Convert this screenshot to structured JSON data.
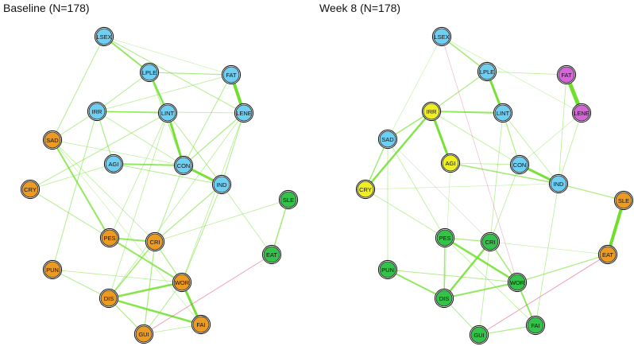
{
  "panels": [
    {
      "title": "Baseline (N=178)",
      "nodes": [
        {
          "id": "LSEX",
          "group": "blue"
        },
        {
          "id": "LPLE",
          "group": "blue"
        },
        {
          "id": "FAT",
          "group": "blue"
        },
        {
          "id": "IRR",
          "group": "blue"
        },
        {
          "id": "LINT",
          "group": "blue"
        },
        {
          "id": "LENE",
          "group": "blue"
        },
        {
          "id": "SAD",
          "group": "orange"
        },
        {
          "id": "AGI",
          "group": "blue"
        },
        {
          "id": "CON",
          "group": "blue"
        },
        {
          "id": "CRY",
          "group": "orange"
        },
        {
          "id": "IND",
          "group": "blue"
        },
        {
          "id": "SLE",
          "group": "green"
        },
        {
          "id": "PES",
          "group": "orange"
        },
        {
          "id": "CRI",
          "group": "orange"
        },
        {
          "id": "EAT",
          "group": "green"
        },
        {
          "id": "PUN",
          "group": "orange"
        },
        {
          "id": "WOR",
          "group": "orange"
        },
        {
          "id": "DIS",
          "group": "orange"
        },
        {
          "id": "FAI",
          "group": "orange"
        },
        {
          "id": "GUI",
          "group": "orange"
        }
      ],
      "edges": [
        {
          "a": "FAT",
          "b": "LENE",
          "w": 4
        },
        {
          "a": "LINT",
          "b": "CON",
          "w": 3
        },
        {
          "a": "CON",
          "b": "IND",
          "w": 3
        },
        {
          "a": "LPLE",
          "b": "LINT",
          "w": 2.5
        },
        {
          "a": "LSEX",
          "b": "LPLE",
          "w": 2
        },
        {
          "a": "AGI",
          "b": "CON",
          "w": 2
        },
        {
          "a": "PES",
          "b": "WOR",
          "w": 2
        },
        {
          "a": "WOR",
          "b": "FAI",
          "w": 3
        },
        {
          "a": "DIS",
          "b": "FAI",
          "w": 2.5
        },
        {
          "a": "PES",
          "b": "CRI",
          "w": 2
        },
        {
          "a": "DIS",
          "b": "WOR",
          "w": 2.5
        },
        {
          "a": "SAD",
          "b": "PES",
          "w": 2
        },
        {
          "a": "CRI",
          "b": "DIS",
          "w": 1.5
        },
        {
          "a": "IRR",
          "b": "LINT",
          "w": 1.5
        },
        {
          "a": "SLE",
          "b": "EAT",
          "w": 1.5
        },
        {
          "a": "LPLE",
          "b": "FAT",
          "w": 1.2
        },
        {
          "a": "LSEX",
          "b": "LENE",
          "w": 1
        },
        {
          "a": "IRR",
          "b": "AGI",
          "w": 1.2
        },
        {
          "a": "IRR",
          "b": "LPLE",
          "w": 1
        },
        {
          "a": "LENE",
          "b": "CON",
          "w": 1.2
        },
        {
          "a": "LENE",
          "b": "IND",
          "w": 1
        },
        {
          "a": "LINT",
          "b": "IND",
          "w": 1
        },
        {
          "a": "CRY",
          "b": "LINT",
          "w": 1
        },
        {
          "a": "SAD",
          "b": "IRR",
          "w": 1
        },
        {
          "a": "SAD",
          "b": "LSEX",
          "w": 1
        },
        {
          "a": "CRY",
          "b": "PES",
          "w": 1
        },
        {
          "a": "PUN",
          "b": "IRR",
          "w": 1
        },
        {
          "a": "DIS",
          "b": "GUI",
          "w": 1.2
        },
        {
          "a": "GUI",
          "b": "CRI",
          "w": 1.2
        },
        {
          "a": "GUI",
          "b": "WOR",
          "w": 1
        },
        {
          "a": "SLE",
          "b": "CRI",
          "w": 0.8
        },
        {
          "a": "IND",
          "b": "CRI",
          "w": 1.2
        },
        {
          "a": "CRI",
          "b": "WOR",
          "w": 1.2
        },
        {
          "a": "PUN",
          "b": "DIS",
          "w": 1
        },
        {
          "a": "CON",
          "b": "CRI",
          "w": 1
        },
        {
          "a": "AGI",
          "b": "IND",
          "w": 1
        },
        {
          "a": "FAT",
          "b": "IRR",
          "w": 0.8
        },
        {
          "a": "FAT",
          "b": "CON",
          "w": 1
        },
        {
          "a": "IRR",
          "b": "LENE",
          "w": 0.8
        },
        {
          "a": "SAD",
          "b": "CRI",
          "w": 0.8
        },
        {
          "a": "LINT",
          "b": "PES",
          "w": 0.8
        },
        {
          "a": "IND",
          "b": "WOR",
          "w": 1
        },
        {
          "a": "IND",
          "b": "EAT",
          "w": 0.8
        },
        {
          "a": "CRY",
          "b": "AGI",
          "w": 0.8
        },
        {
          "a": "LSEX",
          "b": "FAT",
          "w": 0.6
        },
        {
          "a": "SAD",
          "b": "FAI",
          "w": 0.6
        },
        {
          "a": "LINT",
          "b": "DIS",
          "w": 0.8
        },
        {
          "a": "LENE",
          "b": "DIS",
          "w": 0.8
        },
        {
          "a": "LENE",
          "b": "WOR",
          "w": 0.8
        },
        {
          "a": "EAT",
          "b": "GUI",
          "w": 1,
          "neg": true
        },
        {
          "a": "FAI",
          "b": "GUI",
          "w": 0.8
        },
        {
          "a": "PUN",
          "b": "WOR",
          "w": 0.8
        },
        {
          "a": "LPLE",
          "b": "CON",
          "w": 1
        },
        {
          "a": "IRR",
          "b": "CON",
          "w": 0.8
        },
        {
          "a": "SAD",
          "b": "CON",
          "w": 0.7
        }
      ]
    },
    {
      "title": "Week 8 (N=178)",
      "nodes": [
        {
          "id": "LSEX",
          "group": "blue"
        },
        {
          "id": "LPLE",
          "group": "blue"
        },
        {
          "id": "FAT",
          "group": "magenta"
        },
        {
          "id": "IRR",
          "group": "yellow"
        },
        {
          "id": "LINT",
          "group": "blue"
        },
        {
          "id": "LENE",
          "group": "magenta"
        },
        {
          "id": "SAD",
          "group": "blue"
        },
        {
          "id": "AGI",
          "group": "yellow"
        },
        {
          "id": "CON",
          "group": "blue"
        },
        {
          "id": "CRY",
          "group": "yellow"
        },
        {
          "id": "IND",
          "group": "blue"
        },
        {
          "id": "SLE",
          "group": "orange"
        },
        {
          "id": "PES",
          "group": "green"
        },
        {
          "id": "CRI",
          "group": "green"
        },
        {
          "id": "EAT",
          "group": "orange"
        },
        {
          "id": "PUN",
          "group": "green"
        },
        {
          "id": "WOR",
          "group": "green"
        },
        {
          "id": "DIS",
          "group": "green"
        },
        {
          "id": "FAI",
          "group": "green"
        },
        {
          "id": "GUI",
          "group": "green"
        }
      ],
      "edges": [
        {
          "a": "FAT",
          "b": "LENE",
          "w": 5
        },
        {
          "a": "SLE",
          "b": "EAT",
          "w": 4
        },
        {
          "a": "IRR",
          "b": "AGI",
          "w": 3
        },
        {
          "a": "LPLE",
          "b": "LINT",
          "w": 3
        },
        {
          "a": "CON",
          "b": "IND",
          "w": 3
        },
        {
          "a": "IRR",
          "b": "CRY",
          "w": 2.5
        },
        {
          "a": "IRR",
          "b": "LINT",
          "w": 2
        },
        {
          "a": "PES",
          "b": "WOR",
          "w": 2.5
        },
        {
          "a": "CRI",
          "b": "DIS",
          "w": 2.5
        },
        {
          "a": "WOR",
          "b": "FAI",
          "w": 2
        },
        {
          "a": "PUN",
          "b": "DIS",
          "w": 2
        },
        {
          "a": "LSEX",
          "b": "LPLE",
          "w": 1.5
        },
        {
          "a": "SAD",
          "b": "IRR",
          "w": 1.5
        },
        {
          "a": "SAD",
          "b": "CRY",
          "w": 1.5
        },
        {
          "a": "DIS",
          "b": "WOR",
          "w": 2
        },
        {
          "a": "CRI",
          "b": "WOR",
          "w": 1.5
        },
        {
          "a": "PES",
          "b": "DIS",
          "w": 1.5
        },
        {
          "a": "AGI",
          "b": "IND",
          "w": 1.5
        },
        {
          "a": "LINT",
          "b": "CON",
          "w": 1.2
        },
        {
          "a": "EAT",
          "b": "WOR",
          "w": 1.2
        },
        {
          "a": "IND",
          "b": "SLE",
          "w": 1.2
        },
        {
          "a": "IRR",
          "b": "LPLE",
          "w": 1.2
        },
        {
          "a": "GUI",
          "b": "FAI",
          "w": 1.2
        },
        {
          "a": "GUI",
          "b": "DIS",
          "w": 1
        },
        {
          "a": "PES",
          "b": "CRI",
          "w": 1.2
        },
        {
          "a": "LPLE",
          "b": "FAT",
          "w": 0.8
        },
        {
          "a": "FAT",
          "b": "IND",
          "w": 0.8
        },
        {
          "a": "LENE",
          "b": "IND",
          "w": 0.8
        },
        {
          "a": "LINT",
          "b": "IND",
          "w": 0.8
        },
        {
          "a": "SAD",
          "b": "PES",
          "w": 0.8
        },
        {
          "a": "CRY",
          "b": "PES",
          "w": 0.8
        },
        {
          "a": "PUN",
          "b": "WOR",
          "w": 1
        },
        {
          "a": "PUN",
          "b": "SAD",
          "w": 0.8
        },
        {
          "a": "CRI",
          "b": "LINT",
          "w": 0.8
        },
        {
          "a": "EAT",
          "b": "GUI",
          "w": 1,
          "neg": true
        },
        {
          "a": "LSEX",
          "b": "WOR",
          "w": 0.6,
          "neg": true
        },
        {
          "a": "AGI",
          "b": "CON",
          "w": 0.8
        },
        {
          "a": "LSEX",
          "b": "SAD",
          "w": 0.6
        },
        {
          "a": "LSEX",
          "b": "LENE",
          "w": 0.6
        },
        {
          "a": "CRY",
          "b": "IND",
          "w": 0.6
        },
        {
          "a": "IND",
          "b": "FAI",
          "w": 0.8
        },
        {
          "a": "CON",
          "b": "CRI",
          "w": 0.8
        },
        {
          "a": "PES",
          "b": "FAI",
          "w": 0.8
        },
        {
          "a": "CRI",
          "b": "GUI",
          "w": 0.8
        },
        {
          "a": "EAT",
          "b": "CRI",
          "w": 0.6
        },
        {
          "a": "LENE",
          "b": "CON",
          "w": 0.6
        },
        {
          "a": "IRR",
          "b": "CON",
          "w": 0.8
        },
        {
          "a": "SAD",
          "b": "CRI",
          "w": 0.6
        },
        {
          "a": "AGI",
          "b": "DIS",
          "w": 0.6
        }
      ]
    }
  ],
  "colors": {
    "blue": "#6ecff2",
    "orange": "#eb9a22",
    "green": "#34c24a",
    "yellow": "#eeee22",
    "magenta": "#d466d8",
    "edge_positive": "#6ee02a",
    "edge_negative": "#e0507a"
  }
}
